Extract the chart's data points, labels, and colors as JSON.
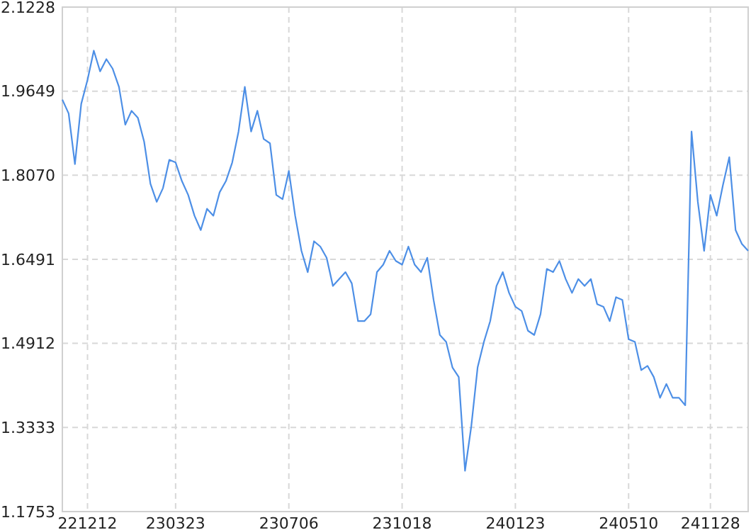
{
  "chart_data": {
    "type": "line",
    "categories": [
      null,
      null,
      null,
      null,
      "221212",
      null,
      null,
      null,
      null,
      null,
      null,
      null,
      null,
      null,
      null,
      null,
      null,
      null,
      "230323",
      null,
      null,
      null,
      null,
      null,
      null,
      null,
      null,
      null,
      null,
      null,
      null,
      null,
      null,
      null,
      null,
      null,
      "230706",
      null,
      null,
      null,
      null,
      null,
      null,
      null,
      null,
      null,
      null,
      null,
      null,
      null,
      null,
      null,
      null,
      null,
      "231018",
      null,
      null,
      null,
      null,
      null,
      null,
      null,
      null,
      null,
      null,
      null,
      null,
      null,
      null,
      null,
      null,
      null,
      "240123",
      null,
      null,
      null,
      null,
      null,
      null,
      null,
      null,
      null,
      null,
      null,
      null,
      null,
      null,
      null,
      null,
      null,
      "240510",
      null,
      null,
      null,
      null,
      null,
      null,
      null,
      null,
      null,
      null,
      null,
      null,
      "241128",
      null,
      null,
      null,
      null,
      null,
      null
    ],
    "series": [
      {
        "color": "#4d8fe6",
        "values": [
          1.949,
          1.923,
          1.828,
          1.941,
          1.986,
          2.041,
          2.002,
          2.025,
          2.007,
          1.973,
          1.902,
          1.928,
          1.915,
          1.87,
          1.791,
          1.757,
          1.783,
          1.836,
          1.831,
          1.796,
          1.77,
          1.731,
          1.704,
          1.744,
          1.731,
          1.775,
          1.796,
          1.831,
          1.889,
          1.973,
          1.889,
          1.928,
          1.875,
          1.867,
          1.77,
          1.762,
          1.815,
          1.731,
          1.665,
          1.625,
          1.683,
          1.673,
          1.652,
          1.599,
          1.612,
          1.625,
          1.604,
          1.533,
          1.533,
          1.546,
          1.625,
          1.639,
          1.665,
          1.646,
          1.639,
          1.673,
          1.639,
          1.625,
          1.652,
          1.573,
          1.507,
          1.494,
          1.446,
          1.428,
          1.252,
          1.336,
          1.446,
          1.494,
          1.533,
          1.599,
          1.625,
          1.586,
          1.56,
          1.552,
          1.515,
          1.507,
          1.546,
          1.631,
          1.625,
          1.646,
          1.612,
          1.586,
          1.612,
          1.599,
          1.612,
          1.565,
          1.56,
          1.533,
          1.578,
          1.573,
          1.499,
          1.494,
          1.441,
          1.449,
          1.428,
          1.389,
          1.415,
          1.389,
          1.389,
          1.375,
          1.889,
          1.757,
          1.665,
          1.77,
          1.731,
          1.789,
          1.841,
          1.704,
          1.678,
          1.665
        ]
      }
    ],
    "ylim": [
      1.1753,
      2.1228
    ],
    "yticks": [
      {
        "value": 1.1753,
        "label": "1.1753"
      },
      {
        "value": 1.3333,
        "label": "1.3333"
      },
      {
        "value": 1.4912,
        "label": "1.4912"
      },
      {
        "value": 1.6491,
        "label": "1.6491"
      },
      {
        "value": 1.807,
        "label": "1.8070"
      },
      {
        "value": 1.9649,
        "label": "1.9649"
      },
      {
        "value": 2.1228,
        "label": "2.1228"
      }
    ],
    "grid": true,
    "line_style": "solid",
    "marker": "none"
  }
}
